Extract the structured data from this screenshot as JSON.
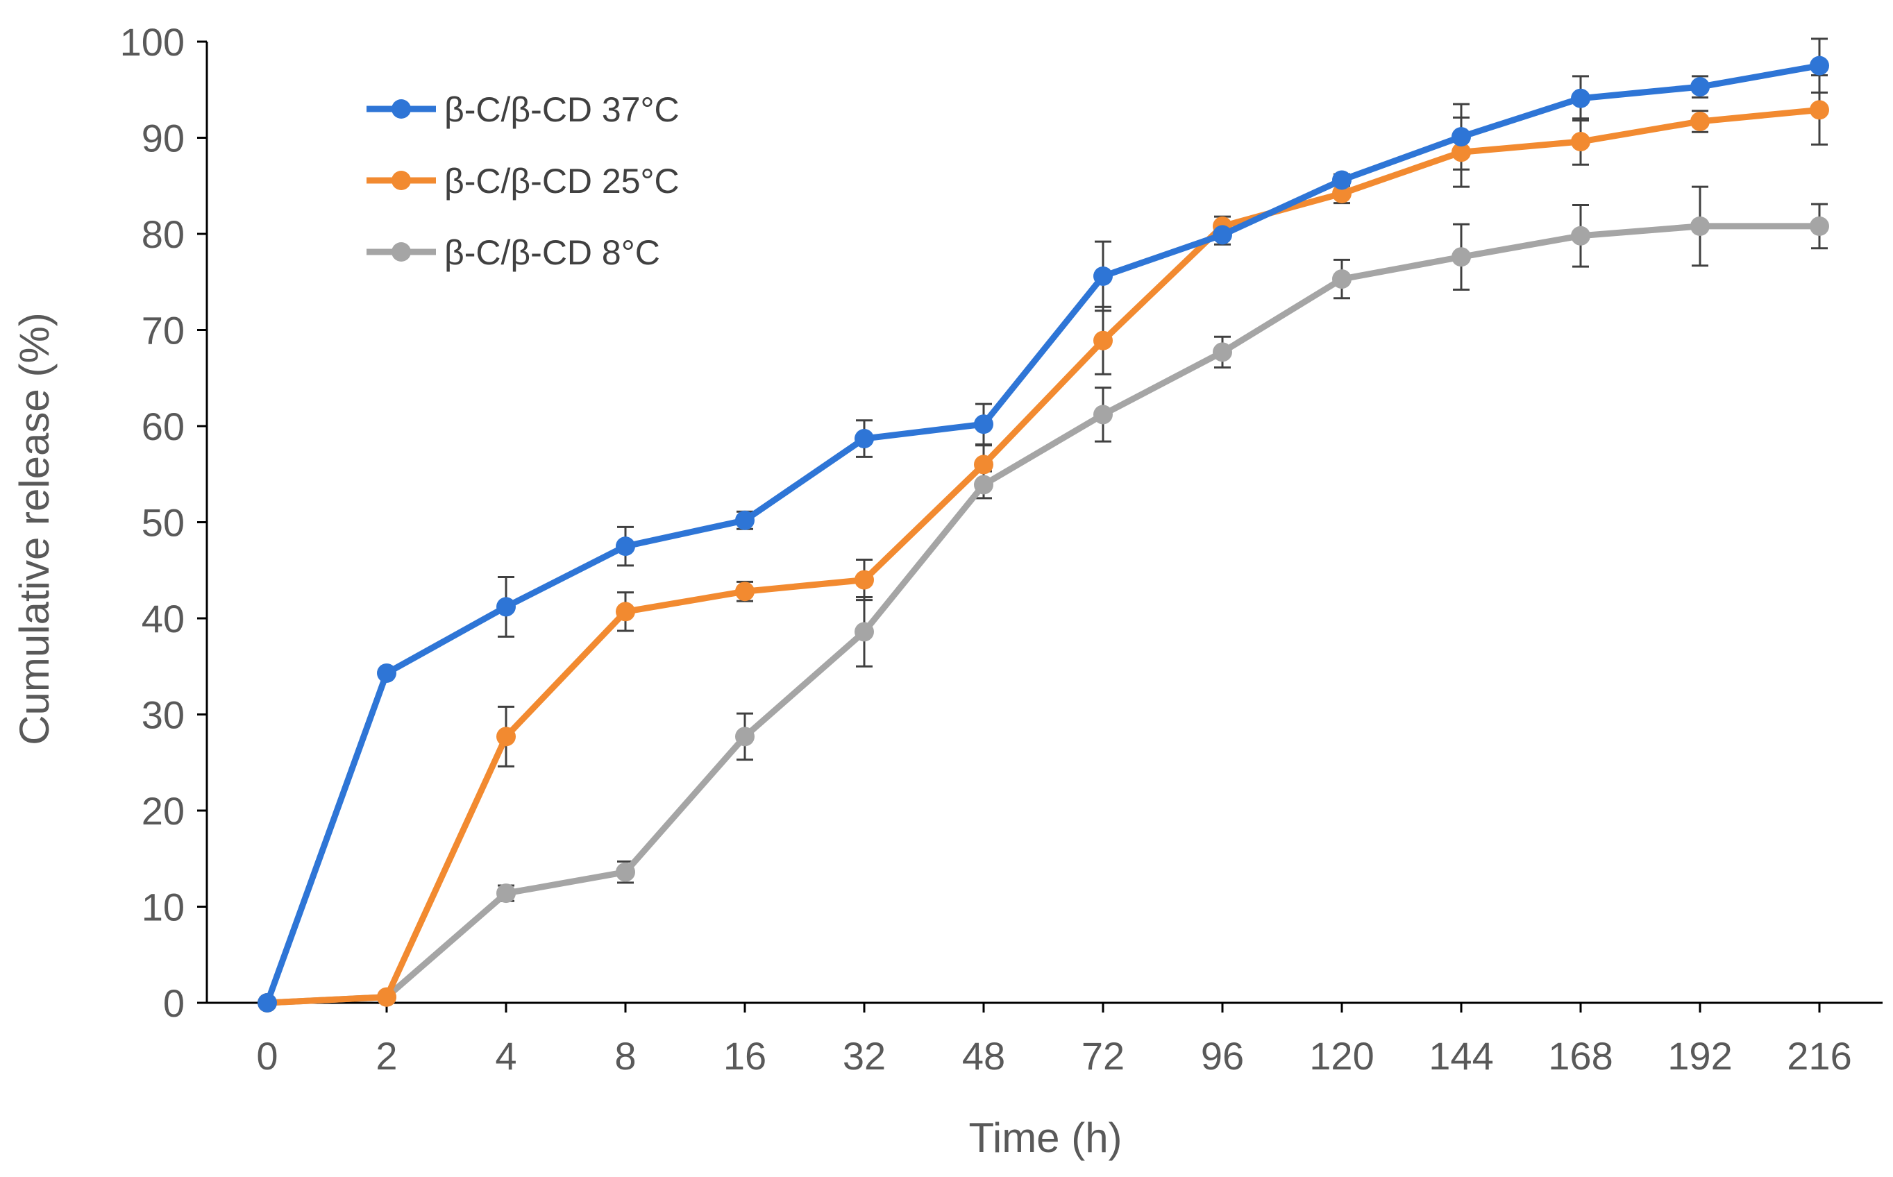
{
  "chart_data": {
    "type": "line",
    "title": "",
    "xlabel": "Time (h)",
    "ylabel": "Cumulative release (%)",
    "categories": [
      "0",
      "2",
      "4",
      "8",
      "16",
      "32",
      "48",
      "72",
      "96",
      "120",
      "144",
      "168",
      "192",
      "216"
    ],
    "ylim": [
      0,
      100
    ],
    "yticks": [
      0,
      10,
      20,
      30,
      40,
      50,
      60,
      70,
      80,
      90,
      100
    ],
    "grid": false,
    "legend_position": "top-left",
    "series": [
      {
        "name": "β-C/β-CD  37°C",
        "color": "#2E75D6",
        "values": [
          0,
          34.3,
          41.2,
          47.5,
          50.2,
          58.7,
          60.2,
          75.6,
          79.9,
          85.6,
          90.1,
          94.1,
          95.3,
          97.5
        ],
        "errors": [
          0,
          0,
          3.1,
          2.0,
          0.9,
          1.9,
          2.1,
          3.6,
          1.0,
          0.6,
          3.4,
          2.3,
          1.1,
          2.8
        ]
      },
      {
        "name": "β-C/β-CD  25°C",
        "color": "#F28A30",
        "values": [
          0,
          0.6,
          27.7,
          40.7,
          42.8,
          44.0,
          56.0,
          68.9,
          80.8,
          84.2,
          88.5,
          89.6,
          91.7,
          92.9
        ],
        "errors": [
          0,
          0,
          3.1,
          2.0,
          1.0,
          2.1,
          2.0,
          3.5,
          1.0,
          1.0,
          3.6,
          2.4,
          1.1,
          3.6
        ]
      },
      {
        "name": "β-C/β-CD  8°C",
        "color": "#A5A5A5",
        "values": [
          0,
          0.6,
          11.4,
          13.6,
          27.7,
          38.6,
          53.9,
          61.2,
          67.7,
          75.3,
          77.6,
          79.8,
          80.8,
          80.8
        ],
        "errors": [
          0,
          0,
          0.8,
          1.1,
          2.4,
          3.6,
          1.4,
          2.8,
          1.6,
          2.0,
          3.4,
          3.2,
          4.1,
          2.3
        ]
      }
    ]
  }
}
